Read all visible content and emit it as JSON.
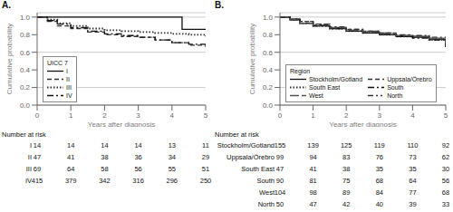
{
  "chart_data": [
    {
      "type": "step",
      "title": "A.",
      "legend_title": "UICC 7",
      "xlabel": "Years after diagnosis",
      "ylabel": "Cumulative probability",
      "xlim": [
        0,
        5
      ],
      "xticks": [
        0,
        1,
        2,
        3,
        4,
        5
      ],
      "ylim": [
        0.0,
        1.05
      ],
      "yticks": [
        {
          "value": 0.0,
          "label": "0.0"
        },
        0.2,
        0.4,
        0.6,
        0.8,
        {
          "value": 1.0,
          "label": "1.0"
        }
      ],
      "grid": true,
      "legend": "lower left",
      "series": [
        {
          "name": "I",
          "color": "#111111",
          "line_style": "solid",
          "x": [
            0,
            0.5,
            1.0,
            1.5,
            2.0,
            2.5,
            3.0,
            3.5,
            4.0,
            4.3,
            5.0
          ],
          "values": [
            1.0,
            1.0,
            1.0,
            1.0,
            1.0,
            1.0,
            1.0,
            1.0,
            1.0,
            0.86,
            0.86
          ]
        },
        {
          "name": "II",
          "color": "#333333",
          "line_style": "dashed",
          "x": [
            0,
            0.3,
            0.6,
            1.0,
            1.5,
            2.0,
            2.5,
            3.0,
            3.5,
            4.0,
            4.5,
            5.0
          ],
          "values": [
            1.0,
            0.95,
            0.9,
            0.87,
            0.83,
            0.8,
            0.78,
            0.77,
            0.74,
            0.71,
            0.68,
            0.66
          ]
        },
        {
          "name": "III",
          "color": "#333333",
          "line_style": "dotted",
          "x": [
            0,
            0.3,
            0.6,
            1.0,
            1.5,
            2.0,
            2.5,
            3.0,
            3.5,
            4.0,
            4.5,
            5.0
          ],
          "values": [
            1.0,
            0.97,
            0.93,
            0.9,
            0.87,
            0.85,
            0.84,
            0.83,
            0.82,
            0.81,
            0.8,
            0.78
          ]
        },
        {
          "name": "IV",
          "color": "#111111",
          "line_style": "dashdot",
          "x": [
            0,
            0.3,
            0.6,
            1.0,
            1.5,
            2.0,
            2.5,
            3.0,
            3.5,
            4.0,
            4.5,
            5.0
          ],
          "values": [
            1.0,
            0.96,
            0.92,
            0.88,
            0.84,
            0.81,
            0.79,
            0.77,
            0.74,
            0.71,
            0.69,
            0.67
          ]
        }
      ],
      "risk_table": {
        "title": "Number at risk",
        "timepoints": [
          0,
          1,
          2,
          3,
          4,
          5
        ],
        "rows": [
          {
            "name": "I",
            "values": [
              14,
              14,
              14,
              14,
              13,
              11
            ]
          },
          {
            "name": "II",
            "values": [
              47,
              41,
              38,
              36,
              34,
              29
            ]
          },
          {
            "name": "III",
            "values": [
              69,
              64,
              58,
              56,
              55,
              51
            ]
          },
          {
            "name": "IV",
            "values": [
              415,
              379,
              342,
              316,
              296,
              250
            ]
          }
        ]
      }
    },
    {
      "type": "step",
      "title": "B.",
      "legend_title": "Region",
      "xlabel": "Years after diagnosis",
      "ylabel": "Cumulative probability",
      "xlim": [
        0,
        5
      ],
      "xticks": [
        0,
        1,
        2,
        3,
        4,
        5
      ],
      "ylim": [
        0.0,
        1.05
      ],
      "yticks": [
        {
          "value": 0.0,
          "label": "0.0"
        },
        0.2,
        0.4,
        0.6,
        0.8,
        {
          "value": 1.0,
          "label": "1.0"
        }
      ],
      "grid": true,
      "legend": "lower left",
      "series": [
        {
          "name": "Stockholm/Gotland",
          "color": "#111111",
          "line_style": "solid",
          "x": [
            0,
            0.3,
            0.6,
            1.0,
            1.5,
            2.0,
            2.5,
            3.0,
            3.5,
            4.0,
            4.5,
            5.0
          ],
          "values": [
            1.0,
            0.97,
            0.93,
            0.9,
            0.87,
            0.84,
            0.82,
            0.8,
            0.78,
            0.77,
            0.75,
            0.66
          ]
        },
        {
          "name": "Uppsala/Örebro",
          "color": "#333333",
          "line_style": "dashed",
          "x": [
            0,
            0.3,
            0.6,
            1.0,
            1.5,
            2.0,
            2.5,
            3.0,
            3.5,
            4.0,
            4.5,
            5.0
          ],
          "values": [
            1.0,
            0.98,
            0.95,
            0.92,
            0.88,
            0.86,
            0.84,
            0.82,
            0.79,
            0.78,
            0.75,
            0.7
          ]
        },
        {
          "name": "South East",
          "color": "#333333",
          "line_style": "dotted",
          "x": [
            0,
            0.3,
            0.6,
            1.0,
            1.5,
            2.0,
            2.5,
            3.0,
            3.5,
            4.0,
            4.5,
            5.0
          ],
          "values": [
            1.0,
            0.97,
            0.93,
            0.9,
            0.87,
            0.84,
            0.82,
            0.8,
            0.78,
            0.77,
            0.74,
            0.66
          ]
        },
        {
          "name": "South",
          "color": "#111111",
          "line_style": "dashdot",
          "x": [
            0,
            0.3,
            0.6,
            1.0,
            1.5,
            2.0,
            2.5,
            3.0,
            3.5,
            4.0,
            4.5,
            5.0
          ],
          "values": [
            1.0,
            0.97,
            0.93,
            0.9,
            0.87,
            0.84,
            0.82,
            0.8,
            0.78,
            0.76,
            0.74,
            0.66
          ]
        },
        {
          "name": "West",
          "color": "#555555",
          "line_style": "longdash",
          "x": [
            0,
            0.3,
            0.6,
            1.0,
            1.5,
            2.0,
            2.5,
            3.0,
            3.5,
            4.0,
            4.5,
            5.0
          ],
          "values": [
            1.0,
            0.97,
            0.93,
            0.91,
            0.88,
            0.85,
            0.83,
            0.81,
            0.79,
            0.78,
            0.76,
            0.7
          ]
        },
        {
          "name": "North",
          "color": "#333333",
          "line_style": "dashdotdot",
          "x": [
            0,
            0.3,
            0.6,
            1.0,
            1.5,
            2.0,
            2.5,
            3.0,
            3.5,
            4.0,
            4.5,
            5.0
          ],
          "values": [
            1.0,
            0.98,
            0.95,
            0.92,
            0.89,
            0.86,
            0.84,
            0.82,
            0.8,
            0.79,
            0.77,
            0.75
          ]
        }
      ],
      "risk_table": {
        "title": "Number at risk",
        "timepoints": [
          0,
          1,
          2,
          3,
          4,
          5
        ],
        "rows": [
          {
            "name": "Stockholm/Gotland",
            "values": [
              155,
              139,
              125,
              119,
              110,
              92
            ]
          },
          {
            "name": "Uppsala/Örebro",
            "values": [
              99,
              94,
              83,
              76,
              73,
              62
            ]
          },
          {
            "name": "South East",
            "values": [
              47,
              41,
              38,
              35,
              35,
              30
            ]
          },
          {
            "name": "South",
            "values": [
              90,
              81,
              75,
              68,
              64,
              56
            ]
          },
          {
            "name": "West",
            "values": [
              104,
              98,
              89,
              84,
              77,
              68
            ]
          },
          {
            "name": "North",
            "values": [
              50,
              47,
              42,
              40,
              39,
              33
            ]
          }
        ]
      }
    }
  ]
}
